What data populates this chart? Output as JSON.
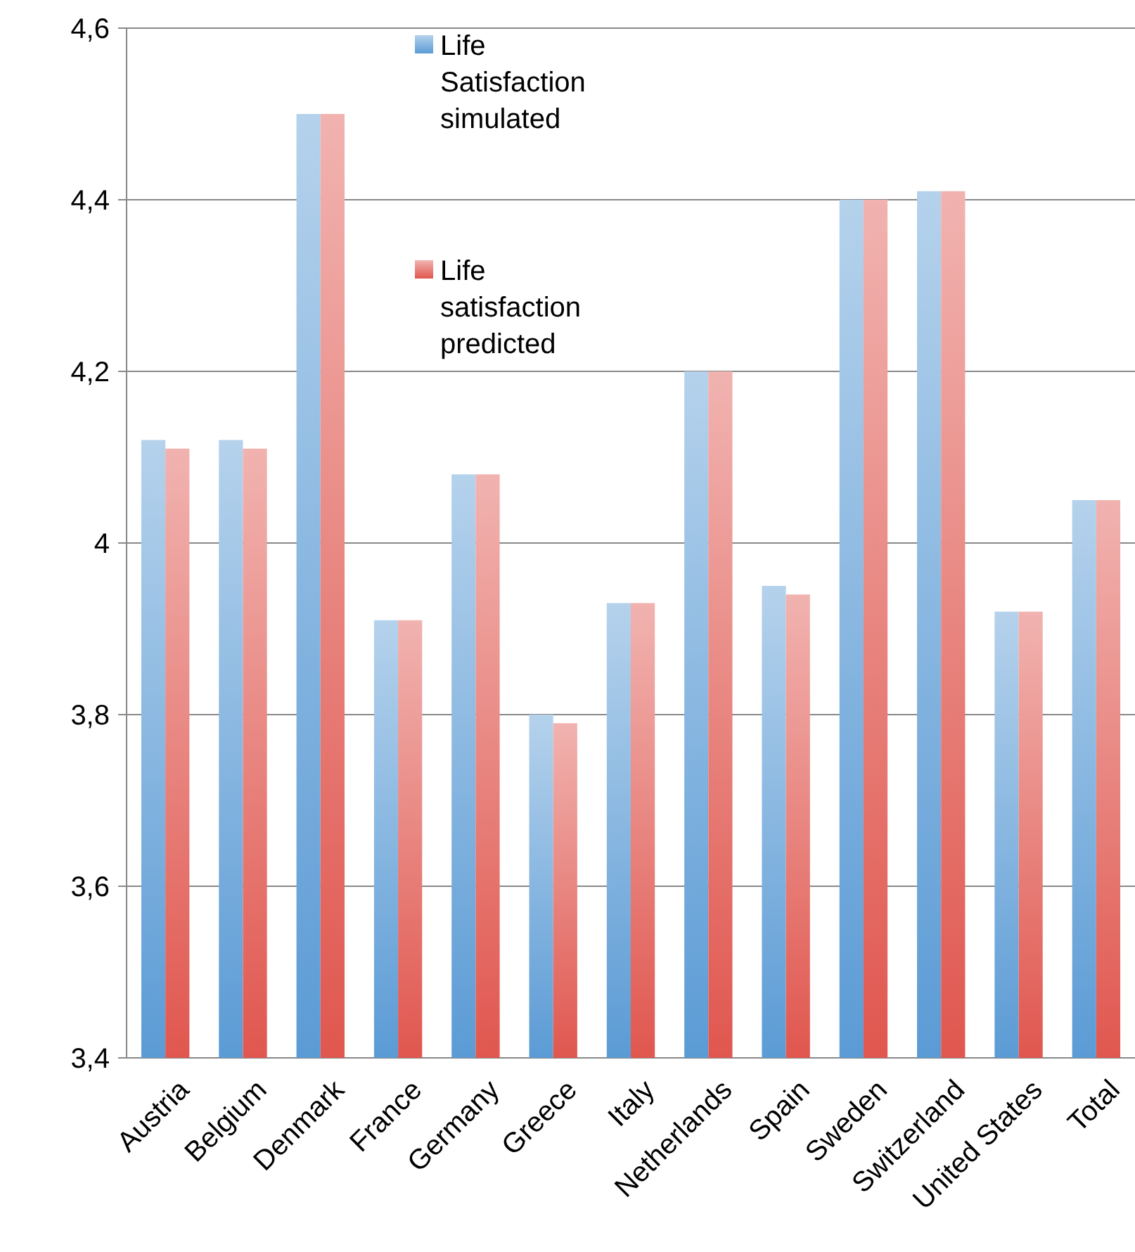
{
  "chart_data": {
    "type": "bar",
    "categories": [
      "Austria",
      "Belgium",
      "Denmark",
      "France",
      "Germany",
      "Greece",
      "Italy",
      "Netherlands",
      "Spain",
      "Sweden",
      "Switzerland",
      "United States",
      "Total"
    ],
    "series": [
      {
        "name": "Life Satisfaction simulated",
        "color": "#5b9bd5",
        "values": [
          4.12,
          4.12,
          4.5,
          3.91,
          4.08,
          3.8,
          3.93,
          4.2,
          3.95,
          4.4,
          4.41,
          3.92,
          4.05
        ]
      },
      {
        "name": "Life satisfaction predicted",
        "color": "#e0574f",
        "values": [
          4.11,
          4.11,
          4.5,
          3.91,
          4.08,
          3.79,
          3.93,
          4.2,
          3.94,
          4.4,
          4.41,
          3.92,
          4.05
        ]
      }
    ],
    "ylim": [
      3.4,
      4.6
    ],
    "yticks": [
      {
        "value": 3.4,
        "label": "3,4"
      },
      {
        "value": 3.6,
        "label": "3,6"
      },
      {
        "value": 3.8,
        "label": "3,8"
      },
      {
        "value": 4,
        "label": "4"
      },
      {
        "value": 4.2,
        "label": "4,2"
      },
      {
        "value": 4.4,
        "label": "4,4"
      },
      {
        "value": 4.6,
        "label": "4,6"
      }
    ],
    "grid": "y",
    "legend": "top"
  }
}
